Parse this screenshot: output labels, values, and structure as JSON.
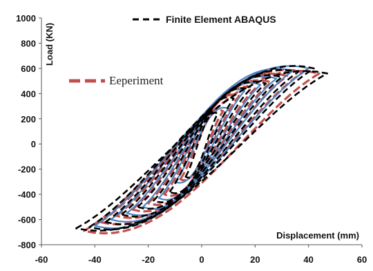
{
  "chart_data": {
    "type": "line",
    "title": "",
    "xlabel": "Displacement (mm)",
    "ylabel": "Load (KN)",
    "xlim": [
      -60,
      60
    ],
    "ylim": [
      -800,
      1000
    ],
    "x_ticks": [
      "-60",
      "-40",
      "-20",
      "0",
      "20",
      "40",
      "60"
    ],
    "y_ticks": [
      "1000",
      "800",
      "600",
      "400",
      "200",
      "0",
      "-200",
      "-400",
      "-600",
      "-800"
    ],
    "grid": false,
    "legend": [
      {
        "label": "Finite Element ABAQUS",
        "style": "dashed",
        "color": "#000000",
        "placement": "top-center"
      },
      {
        "label": "Eeperiment",
        "style": "dashed",
        "color": "#c0504d",
        "placement": "top-left"
      }
    ],
    "series": [
      {
        "name": "Eeperiment",
        "color": "#c0504d",
        "dash": true,
        "loops": [
          {
            "amplitude": 8,
            "peak": 260,
            "trough": -280
          },
          {
            "amplitude": 14,
            "peak": 380,
            "trough": -400
          },
          {
            "amplitude": 20,
            "peak": 440,
            "trough": -470
          },
          {
            "amplitude": 26,
            "peak": 490,
            "trough": -520
          },
          {
            "amplitude": 32,
            "peak": 540,
            "trough": -570
          },
          {
            "amplitude": 38,
            "peak": 570,
            "trough": -620
          },
          {
            "amplitude": 44,
            "peak": 560,
            "trough": -690
          }
        ]
      },
      {
        "name": "",
        "color": "#4f81bd",
        "dash": false,
        "loops": [
          {
            "amplitude": 10,
            "peak": 280,
            "trough": -300
          },
          {
            "amplitude": 16,
            "peak": 420,
            "trough": -430
          },
          {
            "amplitude": 22,
            "peak": 470,
            "trough": -500
          },
          {
            "amplitude": 28,
            "peak": 520,
            "trough": -550
          },
          {
            "amplitude": 34,
            "peak": 580,
            "trough": -600
          },
          {
            "amplitude": 40,
            "peak": 600,
            "trough": -650
          }
        ]
      },
      {
        "name": "Finite Element ABAQUS",
        "color": "#000000",
        "dash": true,
        "loops": [
          {
            "amplitude": 6,
            "peak": 240,
            "trough": -260
          },
          {
            "amplitude": 12,
            "peak": 360,
            "trough": -380
          },
          {
            "amplitude": 18,
            "peak": 430,
            "trough": -450
          },
          {
            "amplitude": 24,
            "peak": 480,
            "trough": -500
          },
          {
            "amplitude": 30,
            "peak": 530,
            "trough": -560
          },
          {
            "amplitude": 36,
            "peak": 570,
            "trough": -620
          },
          {
            "amplitude": 42,
            "peak": 600,
            "trough": -660
          },
          {
            "amplitude": 47,
            "peak": 560,
            "trough": -670
          }
        ]
      }
    ]
  }
}
